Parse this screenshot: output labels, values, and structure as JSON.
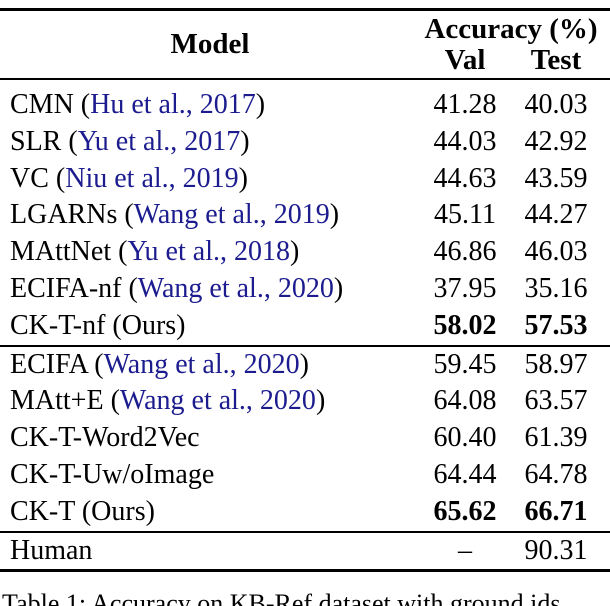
{
  "page": {
    "background": "#ffffff",
    "text_color": "#000000",
    "citation_link_color": "#1c1c8f"
  },
  "table": {
    "header": {
      "model_label": "Model",
      "group_label": "Accuracy (%)",
      "col_val": "Val",
      "col_test": "Test"
    },
    "format": {
      "paren_open": "(",
      "paren_close": ")"
    },
    "sections": [
      {
        "rows": [
          {
            "name": "CMN",
            "cite": "Hu et al., 2017",
            "val": "41.28",
            "test": "40.03",
            "bold": false
          },
          {
            "name": "SLR",
            "cite": "Yu et al., 2017",
            "val": "44.03",
            "test": "42.92",
            "bold": false
          },
          {
            "name": "VC",
            "cite": "Niu et al., 2019",
            "val": "44.63",
            "test": "43.59",
            "bold": false
          },
          {
            "name": "LGARNs",
            "cite": "Wang et al., 2019",
            "val": "45.11",
            "test": "44.27",
            "bold": false
          },
          {
            "name": "MAttNet",
            "cite": "Yu et al., 2018",
            "val": "46.86",
            "test": "46.03",
            "bold": false
          },
          {
            "name": "ECIFA-nf",
            "cite": "Wang et al., 2020",
            "val": "37.95",
            "test": "35.16",
            "bold": false
          },
          {
            "name": "CK-T-nf",
            "suffix": "(Ours)",
            "val": "58.02",
            "test": "57.53",
            "bold": true
          }
        ]
      },
      {
        "rows": [
          {
            "name": "ECIFA",
            "cite": "Wang et al., 2020",
            "val": "59.45",
            "test": "58.97",
            "bold": false
          },
          {
            "name": "MAtt+E",
            "cite": "Wang et al., 2020",
            "val": "64.08",
            "test": "63.57",
            "bold": false
          },
          {
            "name": "CK-T-Word2Vec",
            "val": "60.40",
            "test": "61.39",
            "bold": false
          },
          {
            "name": "CK-T-Uw/oImage",
            "val": "64.44",
            "test": "64.78",
            "bold": false
          },
          {
            "name": "CK-T",
            "suffix": "(Ours)",
            "val": "65.62",
            "test": "66.71",
            "bold": true
          }
        ]
      },
      {
        "rows": [
          {
            "name": "Human",
            "val": "–",
            "test": "90.31",
            "bold": false
          }
        ]
      }
    ]
  },
  "caption": {
    "text": "Table 1: Accuracy on KB-Ref dataset with ground ids"
  }
}
